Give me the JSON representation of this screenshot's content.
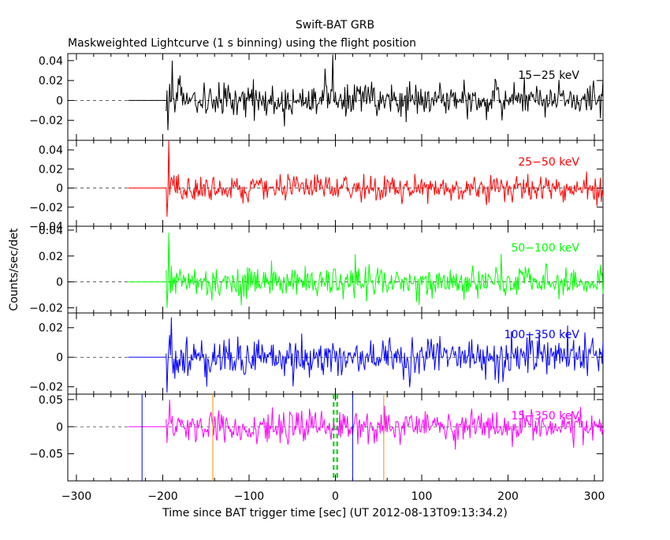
{
  "chart_data": {
    "type": "line",
    "title": "Swift-BAT GRB",
    "subtitle": "Maskweighted Lightcurve (1 s binning) using the flight position",
    "xlabel": "Time since BAT trigger time [sec] (UT 2012-08-13T09:13:34.2)",
    "ylabel": "Counts/sec/det",
    "xlim": [
      -310,
      310
    ],
    "x_ticks": [
      -300,
      -200,
      -100,
      0,
      100,
      200,
      300
    ],
    "flat_segment_end": -196,
    "panels": [
      {
        "band": "15-25 keV",
        "color": "#000000",
        "ylim": [
          -0.04,
          0.047
        ],
        "y_ticks": [
          0.04,
          0.02,
          0,
          -0.02
        ],
        "y_tick_labels": [
          "0.04",
          "0.02",
          "0",
          "−0.02"
        ],
        "noise_sigma": 0.008,
        "features": [
          {
            "t": -194,
            "amp": -0.03
          },
          {
            "t": -189,
            "amp": 0.04
          },
          {
            "t": -180,
            "amp": 0.025
          },
          {
            "t": -12,
            "amp": 0.032
          },
          {
            "t": -3,
            "amp": 0.046
          }
        ]
      },
      {
        "band": "25-50 keV",
        "color": "#ff0000",
        "ylim": [
          -0.04,
          0.05
        ],
        "y_ticks": [
          0.04,
          0.02,
          0,
          -0.02,
          -0.04
        ],
        "y_tick_labels": [
          "0.04",
          "0.02",
          "0",
          "−0.02",
          "−0.04"
        ],
        "noise_sigma": 0.007,
        "features": [
          {
            "t": -193,
            "amp": 0.05
          },
          {
            "t": -195,
            "amp": -0.03
          }
        ]
      },
      {
        "band": "50-100 keV",
        "color": "#00ff00",
        "ylim": [
          -0.024,
          0.043
        ],
        "y_ticks": [
          0.04,
          0.02,
          0,
          -0.02
        ],
        "y_tick_labels": [
          "0.04",
          "0.02",
          "0",
          "−0.02"
        ],
        "noise_sigma": 0.006,
        "features": [
          {
            "t": -193,
            "amp": 0.038
          },
          {
            "t": -195,
            "amp": -0.02
          }
        ]
      },
      {
        "band": "100-350 keV",
        "color": "#0000ff",
        "ylim": [
          -0.025,
          0.03
        ],
        "y_ticks": [
          0.02,
          0,
          -0.02
        ],
        "y_tick_labels": [
          "0.02",
          "0",
          "−0.02"
        ],
        "noise_sigma": 0.0065,
        "features": [
          {
            "t": -190,
            "amp": 0.027
          },
          {
            "t": -195,
            "amp": -0.024
          }
        ]
      },
      {
        "band": "15-350 keV",
        "color": "#ff00ff",
        "ylim": [
          -0.1,
          0.06
        ],
        "y_ticks": [
          0.05,
          0,
          -0.05
        ],
        "y_tick_labels": [
          "0.05",
          "0",
          "−0.05"
        ],
        "noise_sigma": 0.014,
        "features": [
          {
            "t": -192,
            "amp": 0.05
          },
          {
            "t": -195,
            "amp": -0.03
          }
        ]
      }
    ],
    "markers": [
      {
        "t": -224,
        "color": "#0000ff",
        "style": "solid"
      },
      {
        "t": -142,
        "color": "#ff8c00",
        "style": "solid"
      },
      {
        "t": -2,
        "color": "#00cc00",
        "style": "dashed"
      },
      {
        "t": 2,
        "color": "#00cc00",
        "style": "dashed"
      },
      {
        "t": 20,
        "color": "#0000ff",
        "style": "solid"
      },
      {
        "t": 56,
        "color": "#ff8c00",
        "style": "solid"
      }
    ]
  }
}
